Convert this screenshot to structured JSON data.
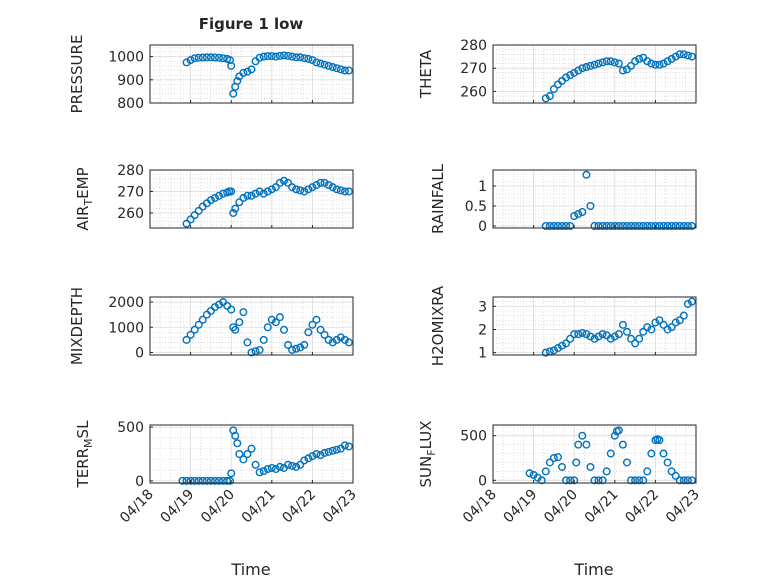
{
  "figure": {
    "title": "Figure 1 low",
    "xlabel": "Time",
    "marker_color": "#0072BD",
    "x_ticks": [
      "04/18",
      "04/19",
      "04/20",
      "04/21",
      "04/22",
      "04/23"
    ]
  },
  "chart_data": [
    {
      "type": "scatter",
      "ylabel": "PRESSURE",
      "ylim": [
        800,
        1050
      ],
      "yticks": [
        "800",
        "900",
        "1000"
      ],
      "ytick_values": [
        800,
        900,
        1000
      ],
      "grid": true,
      "x": [
        18.9,
        19.0,
        19.1,
        19.2,
        19.3,
        19.4,
        19.5,
        19.6,
        19.7,
        19.8,
        19.9,
        19.97,
        20.0,
        20.05,
        20.1,
        20.15,
        20.2,
        20.3,
        20.4,
        20.5,
        20.6,
        20.7,
        20.8,
        20.9,
        21.0,
        21.1,
        21.2,
        21.3,
        21.4,
        21.5,
        21.6,
        21.7,
        21.8,
        21.9,
        22.0,
        22.1,
        22.2,
        22.3,
        22.4,
        22.5,
        22.6,
        22.7,
        22.8,
        22.9
      ],
      "y": [
        975,
        985,
        993,
        995,
        996,
        997,
        997,
        996,
        995,
        993,
        990,
        985,
        960,
        840,
        870,
        895,
        915,
        930,
        935,
        945,
        980,
        995,
        1000,
        1002,
        1002,
        1000,
        1003,
        1005,
        1003,
        1000,
        997,
        997,
        993,
        990,
        985,
        975,
        970,
        965,
        960,
        955,
        950,
        945,
        940,
        940
      ]
    },
    {
      "type": "scatter",
      "ylabel": "THETA",
      "ylim": [
        255,
        280
      ],
      "yticks": [
        "260",
        "270",
        "280"
      ],
      "ytick_values": [
        260,
        270,
        280
      ],
      "grid": true,
      "x": [
        19.3,
        19.4,
        19.5,
        19.6,
        19.7,
        19.8,
        19.9,
        20.0,
        20.1,
        20.2,
        20.3,
        20.4,
        20.5,
        20.6,
        20.7,
        20.8,
        20.9,
        21.0,
        21.1,
        21.2,
        21.3,
        21.4,
        21.5,
        21.6,
        21.7,
        21.8,
        21.9,
        22.0,
        22.1,
        22.2,
        22.3,
        22.4,
        22.5,
        22.6,
        22.7,
        22.8,
        22.9
      ],
      "y": [
        257,
        258,
        261,
        263,
        264.5,
        266,
        267,
        268,
        269,
        270,
        270.5,
        271,
        271.5,
        272,
        272.5,
        273,
        273,
        272.5,
        272,
        269,
        269.5,
        271,
        273,
        274,
        274.5,
        273,
        272,
        271.5,
        271.5,
        272,
        273,
        274,
        275,
        276,
        276,
        275.5,
        275
      ]
    },
    {
      "type": "scatter",
      "ylabel": "AIR_TEMP",
      "ylim": [
        253,
        280
      ],
      "yticks": [
        "260",
        "270",
        "280"
      ],
      "ytick_values": [
        260,
        270,
        280
      ],
      "grid": true,
      "x": [
        18.9,
        19.0,
        19.1,
        19.2,
        19.3,
        19.4,
        19.5,
        19.6,
        19.7,
        19.8,
        19.9,
        19.95,
        20.0,
        20.05,
        20.1,
        20.2,
        20.3,
        20.4,
        20.5,
        20.6,
        20.7,
        20.8,
        20.9,
        21.0,
        21.1,
        21.2,
        21.3,
        21.4,
        21.5,
        21.6,
        21.7,
        21.8,
        21.9,
        22.0,
        22.1,
        22.2,
        22.3,
        22.4,
        22.5,
        22.6,
        22.7,
        22.8,
        22.9
      ],
      "y": [
        255,
        257,
        259,
        261,
        263,
        264.5,
        266,
        267,
        268,
        269,
        269.5,
        270,
        270,
        260,
        262,
        265,
        267,
        268,
        268,
        269,
        270,
        269,
        270,
        271,
        272,
        274,
        275,
        274,
        272,
        271,
        270.5,
        270,
        271,
        272,
        273,
        274,
        274,
        273,
        272,
        271,
        270.5,
        270,
        270
      ]
    },
    {
      "type": "scatter",
      "ylabel": "RAINFALL",
      "ylim": [
        -0.05,
        1.4
      ],
      "yticks": [
        "0",
        "0.5",
        "1"
      ],
      "ytick_values": [
        0,
        0.5,
        1
      ],
      "grid": true,
      "x": [
        19.3,
        19.4,
        19.5,
        19.6,
        19.7,
        19.8,
        19.9,
        20.0,
        20.1,
        20.2,
        20.3,
        20.4,
        20.5,
        20.6,
        20.7,
        20.8,
        20.9,
        21.0,
        21.1,
        21.2,
        21.3,
        21.4,
        21.5,
        21.6,
        21.7,
        21.8,
        21.9,
        22.0,
        22.1,
        22.2,
        22.3,
        22.4,
        22.5,
        22.6,
        22.7,
        22.8,
        22.9
      ],
      "y": [
        0,
        0,
        0,
        0,
        0,
        0,
        0,
        0.25,
        0.3,
        0.35,
        1.28,
        0.5,
        0,
        0,
        0,
        0,
        0,
        0,
        0,
        0,
        0,
        0,
        0,
        0,
        0,
        0,
        0,
        0,
        0,
        0,
        0,
        0,
        0,
        0,
        0,
        0,
        0
      ]
    },
    {
      "type": "scatter",
      "ylabel": "MIXDEPTH",
      "ylim": [
        -100,
        2200
      ],
      "yticks": [
        "0",
        "1000",
        "2000"
      ],
      "ytick_values": [
        0,
        1000,
        2000
      ],
      "grid": true,
      "x": [
        18.9,
        19.0,
        19.1,
        19.2,
        19.3,
        19.4,
        19.5,
        19.6,
        19.7,
        19.8,
        19.9,
        20.0,
        20.05,
        20.1,
        20.2,
        20.3,
        20.4,
        20.5,
        20.6,
        20.7,
        20.8,
        20.9,
        21.0,
        21.1,
        21.2,
        21.3,
        21.4,
        21.5,
        21.6,
        21.7,
        21.8,
        21.9,
        22.0,
        22.1,
        22.2,
        22.3,
        22.4,
        22.5,
        22.6,
        22.7,
        22.8,
        22.9
      ],
      "y": [
        500,
        700,
        900,
        1100,
        1300,
        1500,
        1650,
        1800,
        1900,
        2000,
        1850,
        1700,
        1000,
        900,
        1200,
        1600,
        400,
        0,
        50,
        100,
        500,
        1000,
        1300,
        1200,
        1400,
        900,
        300,
        100,
        150,
        200,
        300,
        800,
        1100,
        1300,
        900,
        700,
        500,
        400,
        500,
        600,
        500,
        400
      ]
    },
    {
      "type": "scatter",
      "ylabel": "H2OMIXRA",
      "ylim": [
        0.9,
        3.4
      ],
      "yticks": [
        "1",
        "2",
        "3"
      ],
      "ytick_values": [
        1,
        2,
        3
      ],
      "grid": true,
      "x": [
        19.3,
        19.4,
        19.5,
        19.6,
        19.7,
        19.8,
        19.9,
        20.0,
        20.1,
        20.2,
        20.3,
        20.4,
        20.5,
        20.6,
        20.7,
        20.8,
        20.9,
        21.0,
        21.1,
        21.2,
        21.3,
        21.4,
        21.5,
        21.6,
        21.7,
        21.8,
        21.9,
        22.0,
        22.1,
        22.2,
        22.3,
        22.4,
        22.5,
        22.6,
        22.7,
        22.8,
        22.9
      ],
      "y": [
        1.0,
        1.05,
        1.1,
        1.2,
        1.3,
        1.4,
        1.6,
        1.8,
        1.8,
        1.85,
        1.8,
        1.7,
        1.6,
        1.7,
        1.8,
        1.75,
        1.6,
        1.7,
        1.8,
        2.2,
        1.9,
        1.6,
        1.4,
        1.6,
        1.9,
        2.1,
        2.0,
        2.3,
        2.4,
        2.2,
        2.0,
        2.1,
        2.3,
        2.4,
        2.6,
        3.1,
        3.2
      ]
    },
    {
      "type": "scatter",
      "ylabel": "TERR_MSL",
      "ylim": [
        -20,
        520
      ],
      "yticks": [
        "0",
        "500"
      ],
      "ytick_values": [
        0,
        500
      ],
      "grid": true,
      "x": [
        18.8,
        18.9,
        19.0,
        19.1,
        19.2,
        19.3,
        19.4,
        19.5,
        19.6,
        19.7,
        19.8,
        19.9,
        19.97,
        20.0,
        20.05,
        20.1,
        20.15,
        20.2,
        20.3,
        20.4,
        20.5,
        20.6,
        20.7,
        20.8,
        20.9,
        21.0,
        21.1,
        21.2,
        21.3,
        21.4,
        21.5,
        21.6,
        21.7,
        21.8,
        21.9,
        22.0,
        22.1,
        22.2,
        22.3,
        22.4,
        22.5,
        22.6,
        22.7,
        22.8,
        22.9
      ],
      "y": [
        0,
        0,
        0,
        0,
        0,
        0,
        0,
        0,
        0,
        0,
        0,
        0,
        0,
        70,
        470,
        420,
        350,
        250,
        200,
        250,
        300,
        150,
        80,
        90,
        110,
        120,
        110,
        130,
        120,
        150,
        140,
        130,
        150,
        190,
        210,
        230,
        250,
        240,
        260,
        270,
        280,
        290,
        300,
        330,
        320
      ]
    },
    {
      "type": "scatter",
      "ylabel": "SUN_FLUX",
      "ylim": [
        -30,
        620
      ],
      "yticks": [
        "0",
        "500"
      ],
      "ytick_values": [
        0,
        500
      ],
      "grid": true,
      "x": [
        18.9,
        19.0,
        19.1,
        19.2,
        19.3,
        19.4,
        19.5,
        19.6,
        19.7,
        19.8,
        19.9,
        20.0,
        20.05,
        20.1,
        20.2,
        20.3,
        20.4,
        20.5,
        20.6,
        20.7,
        20.8,
        20.9,
        21.0,
        21.05,
        21.1,
        21.2,
        21.3,
        21.4,
        21.5,
        21.6,
        21.7,
        21.8,
        21.9,
        22.0,
        22.05,
        22.1,
        22.2,
        22.3,
        22.4,
        22.5,
        22.6,
        22.7,
        22.8,
        22.9
      ],
      "y": [
        80,
        60,
        30,
        0,
        100,
        200,
        250,
        260,
        150,
        0,
        0,
        0,
        200,
        400,
        500,
        400,
        150,
        0,
        0,
        0,
        100,
        300,
        500,
        550,
        560,
        400,
        200,
        0,
        0,
        0,
        0,
        100,
        300,
        450,
        460,
        450,
        300,
        200,
        100,
        50,
        0,
        0,
        0,
        0
      ]
    }
  ]
}
